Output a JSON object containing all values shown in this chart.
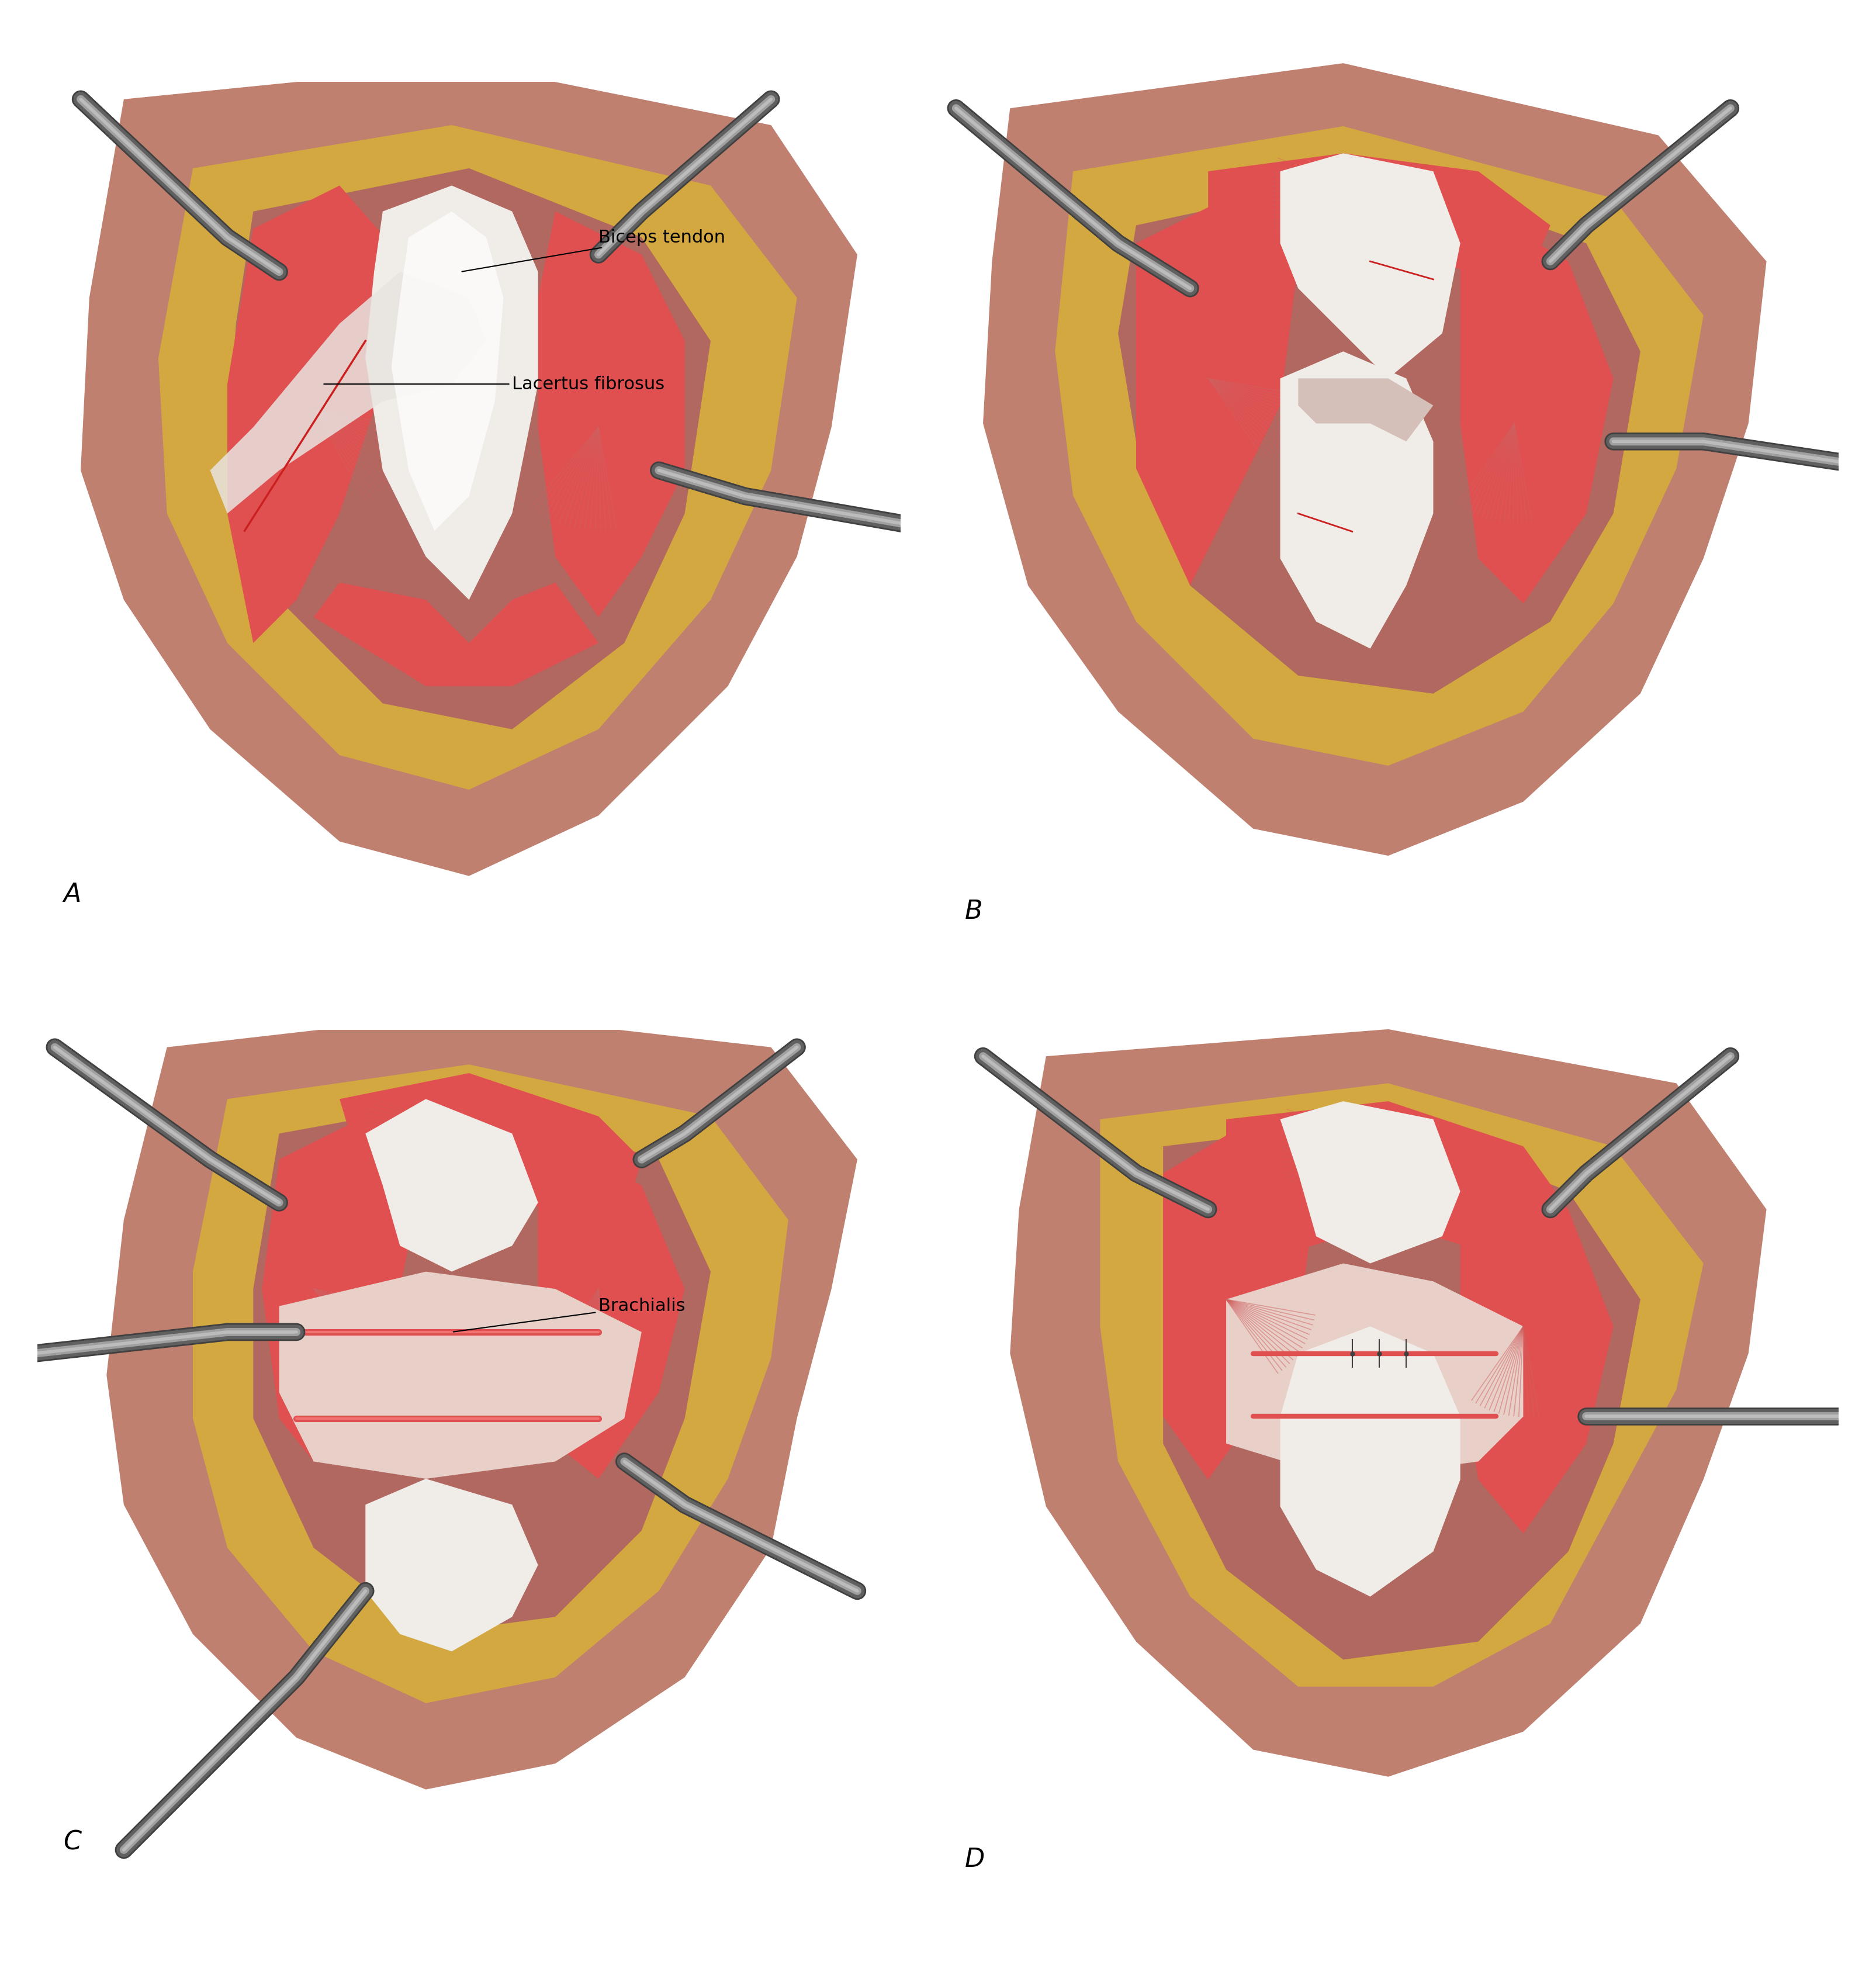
{
  "figure_width": 32.1,
  "figure_height": 33.79,
  "background_color": "#ffffff",
  "label_A": "A",
  "label_B": "B",
  "label_C": "C",
  "label_D": "D",
  "label_fontsize": 32,
  "label_font_style": "italic",
  "annotation_fontsize": 22,
  "annotation_biceps_tendon": "Biceps tendon",
  "annotation_lacertus": "Lacertus fibrosus",
  "annotation_brachialis": "Brachialis",
  "skin_color": "#c08070",
  "skin_dark": "#a06858",
  "fat_color": "#d4a840",
  "fat_light": "#e8c060",
  "muscle_red": "#e05050",
  "muscle_red_light": "#e87878",
  "tendon_white": "#f0ece8",
  "tendon_off_white": "#e8e0d8",
  "tendon_shadow": "#d0c8c0",
  "retractor_gray": "#606060",
  "retractor_dark": "#404040",
  "retractor_light": "#808080",
  "cut_line_color": "#cc2020",
  "suture_color": "#404040",
  "line_color": "#1a1a1a"
}
